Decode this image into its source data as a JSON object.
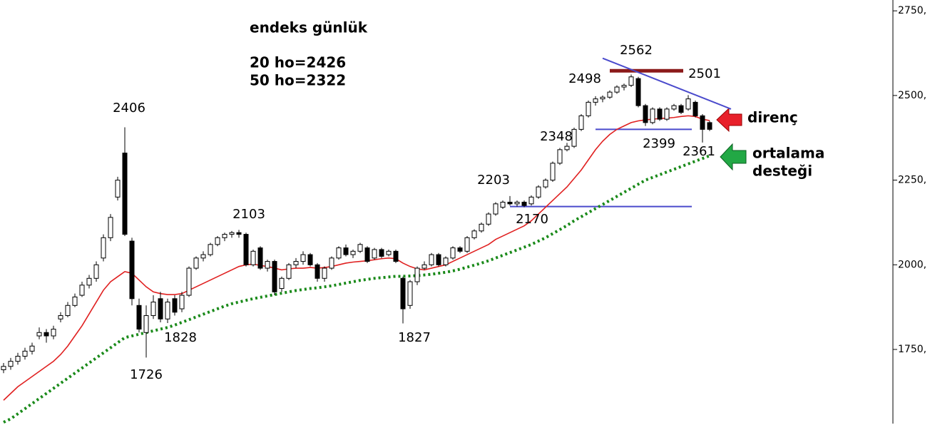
{
  "chart_data": {
    "type": "candlestick",
    "title": "endeks günlük",
    "subtitle_lines": [
      "20 ho=2426",
      "50 ho=2322"
    ],
    "ylim": [
      1531,
      2782
    ],
    "yticks": [
      {
        "value": 1750,
        "label": "1750,"
      },
      {
        "value": 2000,
        "label": "2000,"
      },
      {
        "value": 2250,
        "label": "2250,"
      },
      {
        "value": 2500,
        "label": "2500,"
      },
      {
        "value": 2750,
        "label": "2750,"
      }
    ],
    "candles": [
      [
        1690,
        1710,
        1680,
        1700
      ],
      [
        1700,
        1725,
        1690,
        1715
      ],
      [
        1715,
        1740,
        1705,
        1730
      ],
      [
        1730,
        1755,
        1720,
        1745
      ],
      [
        1745,
        1770,
        1735,
        1760
      ],
      [
        1790,
        1815,
        1780,
        1800
      ],
      [
        1800,
        1810,
        1770,
        1790
      ],
      [
        1790,
        1820,
        1780,
        1810
      ],
      [
        1840,
        1860,
        1830,
        1850
      ],
      [
        1850,
        1890,
        1845,
        1880
      ],
      [
        1880,
        1915,
        1875,
        1905
      ],
      [
        1910,
        1950,
        1905,
        1940
      ],
      [
        1940,
        1970,
        1930,
        1960
      ],
      [
        1960,
        2010,
        1950,
        2000
      ],
      [
        2020,
        2090,
        2010,
        2080
      ],
      [
        2080,
        2150,
        2070,
        2140
      ],
      [
        2200,
        2260,
        2190,
        2250
      ],
      [
        2330,
        2406,
        2085,
        2090
      ],
      [
        2070,
        2080,
        1880,
        1900
      ],
      [
        1880,
        1900,
        1800,
        1810
      ],
      [
        1800,
        1880,
        1726,
        1850
      ],
      [
        1850,
        1910,
        1840,
        1890
      ],
      [
        1900,
        1920,
        1830,
        1840
      ],
      [
        1840,
        1900,
        1828,
        1890
      ],
      [
        1900,
        1910,
        1850,
        1860
      ],
      [
        1870,
        1920,
        1860,
        1910
      ],
      [
        1910,
        1995,
        1905,
        1990
      ],
      [
        1990,
        2025,
        1985,
        2020
      ],
      [
        2020,
        2040,
        2010,
        2030
      ],
      [
        2030,
        2065,
        2025,
        2060
      ],
      [
        2060,
        2085,
        2055,
        2080
      ],
      [
        2080,
        2095,
        2070,
        2090
      ],
      [
        2090,
        2100,
        2080,
        2095
      ],
      [
        2095,
        2103,
        2080,
        2090
      ],
      [
        2090,
        2095,
        1995,
        2000
      ],
      [
        2000,
        2045,
        1995,
        2040
      ],
      [
        2050,
        2055,
        1985,
        1990
      ],
      [
        1990,
        2015,
        1980,
        2010
      ],
      [
        2010,
        2015,
        1910,
        1920
      ],
      [
        1930,
        1965,
        1920,
        1960
      ],
      [
        1960,
        2005,
        1955,
        2000
      ],
      [
        2000,
        2020,
        1990,
        2010
      ],
      [
        2010,
        2040,
        2000,
        2030
      ],
      [
        2030,
        2035,
        1995,
        2000
      ],
      [
        2000,
        2005,
        1950,
        1960
      ],
      [
        1960,
        1995,
        1950,
        1990
      ],
      [
        1990,
        2025,
        1985,
        2020
      ],
      [
        2020,
        2055,
        2015,
        2050
      ],
      [
        2050,
        2060,
        2025,
        2030
      ],
      [
        2030,
        2045,
        2020,
        2040
      ],
      [
        2040,
        2065,
        2035,
        2060
      ],
      [
        2050,
        2055,
        2005,
        2010
      ],
      [
        2020,
        2050,
        2015,
        2045
      ],
      [
        2045,
        2050,
        2020,
        2025
      ],
      [
        2030,
        2045,
        2025,
        2040
      ],
      [
        2040,
        2045,
        2005,
        2010
      ],
      [
        1960,
        1965,
        1827,
        1870
      ],
      [
        1880,
        1955,
        1870,
        1950
      ],
      [
        1950,
        1995,
        1940,
        1990
      ],
      [
        1990,
        2010,
        1985,
        2000
      ],
      [
        2000,
        2035,
        1995,
        2030
      ],
      [
        2030,
        2035,
        1995,
        2000
      ],
      [
        2000,
        2025,
        1995,
        2020
      ],
      [
        2020,
        2055,
        2015,
        2050
      ],
      [
        2050,
        2055,
        2035,
        2040
      ],
      [
        2040,
        2085,
        2035,
        2080
      ],
      [
        2080,
        2105,
        2075,
        2100
      ],
      [
        2100,
        2125,
        2095,
        2120
      ],
      [
        2120,
        2155,
        2115,
        2150
      ],
      [
        2150,
        2185,
        2145,
        2180
      ],
      [
        2170,
        2190,
        2165,
        2185
      ],
      [
        2185,
        2203,
        2175,
        2180
      ],
      [
        2180,
        2190,
        2172,
        2185
      ],
      [
        2185,
        2190,
        2170,
        2175
      ],
      [
        2180,
        2205,
        2175,
        2200
      ],
      [
        2200,
        2235,
        2195,
        2230
      ],
      [
        2230,
        2255,
        2225,
        2250
      ],
      [
        2250,
        2305,
        2245,
        2300
      ],
      [
        2300,
        2345,
        2295,
        2340
      ],
      [
        2340,
        2360,
        2335,
        2350
      ],
      [
        2350,
        2405,
        2345,
        2400
      ],
      [
        2400,
        2445,
        2395,
        2440
      ],
      [
        2440,
        2485,
        2435,
        2480
      ],
      [
        2480,
        2498,
        2470,
        2490
      ],
      [
        2490,
        2500,
        2480,
        2495
      ],
      [
        2495,
        2515,
        2490,
        2510
      ],
      [
        2510,
        2530,
        2505,
        2525
      ],
      [
        2525,
        2535,
        2515,
        2530
      ],
      [
        2530,
        2562,
        2525,
        2555
      ],
      [
        2550,
        2555,
        2465,
        2470
      ],
      [
        2470,
        2475,
        2410,
        2420
      ],
      [
        2420,
        2465,
        2415,
        2460
      ],
      [
        2460,
        2465,
        2425,
        2430
      ],
      [
        2430,
        2465,
        2425,
        2460
      ],
      [
        2460,
        2475,
        2455,
        2470
      ],
      [
        2470,
        2475,
        2445,
        2450
      ],
      [
        2460,
        2501,
        2455,
        2490
      ],
      [
        2480,
        2485,
        2435,
        2440
      ],
      [
        2440,
        2445,
        2361,
        2400
      ],
      [
        2420,
        2425,
        2395,
        2400
      ]
    ],
    "series": [
      {
        "name": "20 ho",
        "color": "#e02020",
        "style": "solid",
        "values": [
          1600,
          1620,
          1640,
          1655,
          1670,
          1685,
          1700,
          1715,
          1735,
          1760,
          1790,
          1820,
          1855,
          1890,
          1925,
          1950,
          1965,
          1980,
          1975,
          1955,
          1935,
          1920,
          1915,
          1912,
          1912,
          1915,
          1925,
          1935,
          1945,
          1955,
          1965,
          1975,
          1985,
          1995,
          2000,
          2002,
          1998,
          1995,
          1990,
          1985,
          1988,
          1990,
          1990,
          1992,
          1990,
          1992,
          1995,
          2000,
          2005,
          2008,
          2010,
          2012,
          2015,
          2018,
          2020,
          2018,
          2005,
          1995,
          1988,
          1985,
          1990,
          1995,
          2000,
          2010,
          2020,
          2030,
          2040,
          2050,
          2060,
          2075,
          2085,
          2095,
          2105,
          2115,
          2130,
          2150,
          2170,
          2190,
          2210,
          2230,
          2255,
          2280,
          2310,
          2340,
          2365,
          2385,
          2400,
          2410,
          2420,
          2425,
          2428,
          2430,
          2432,
          2433,
          2435,
          2438,
          2440,
          2438,
          2430,
          2426
        ]
      },
      {
        "name": "50 ho",
        "color": "#1a8a1a",
        "style": "dotted",
        "values": [
          1535,
          1545,
          1560,
          1575,
          1590,
          1605,
          1620,
          1635,
          1650,
          1665,
          1680,
          1695,
          1710,
          1725,
          1740,
          1755,
          1770,
          1785,
          1790,
          1795,
          1800,
          1805,
          1810,
          1815,
          1822,
          1830,
          1838,
          1846,
          1854,
          1862,
          1870,
          1878,
          1885,
          1890,
          1895,
          1900,
          1904,
          1908,
          1912,
          1916,
          1920,
          1924,
          1927,
          1930,
          1932,
          1935,
          1938,
          1942,
          1946,
          1950,
          1954,
          1957,
          1960,
          1962,
          1964,
          1966,
          1966,
          1967,
          1968,
          1970,
          1972,
          1975,
          1978,
          1982,
          1987,
          1993,
          1999,
          2005,
          2012,
          2020,
          2028,
          2036,
          2044,
          2052,
          2060,
          2070,
          2080,
          2092,
          2104,
          2116,
          2130,
          2142,
          2154,
          2166,
          2178,
          2190,
          2202,
          2214,
          2226,
          2238,
          2250,
          2258,
          2266,
          2274,
          2282,
          2290,
          2298,
          2306,
          2314,
          2322
        ]
      }
    ],
    "annotations": [
      2406,
      1726,
      1828,
      2103,
      1827,
      2203,
      2170,
      2348,
      2498,
      2562,
      2501,
      2399,
      2361
    ],
    "levels": [
      {
        "value": 2573,
        "color": "#8b1a1a"
      },
      {
        "value": 2400,
        "color": "#4a4acc"
      },
      {
        "value": 2172,
        "color": "#4a4acc"
      }
    ],
    "trendline": {
      "values": [
        2610,
        2460
      ],
      "color": "#4a4acc"
    },
    "callouts": {
      "resistance": "direnç",
      "support": [
        "ortalama",
        "desteği"
      ]
    }
  }
}
